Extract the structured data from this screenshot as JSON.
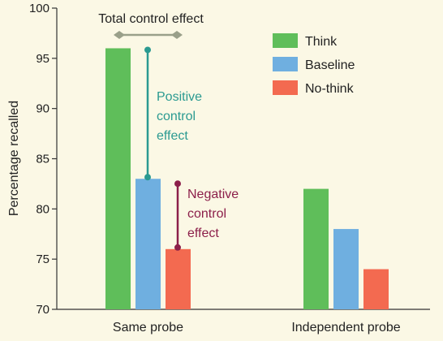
{
  "chart_data": {
    "type": "bar",
    "categories": [
      "Same probe",
      "Independent probe"
    ],
    "series": [
      {
        "name": "Think",
        "color": "#5fbe5a",
        "values": [
          96,
          82
        ]
      },
      {
        "name": "Baseline",
        "color": "#6fafe0",
        "values": [
          83,
          78
        ]
      },
      {
        "name": "No-think",
        "color": "#f36a50",
        "values": [
          76,
          74
        ]
      }
    ],
    "ylabel": "Percentage recalled",
    "xlabel": "",
    "ylim": [
      70,
      100
    ],
    "yticks": [
      70,
      75,
      80,
      85,
      90,
      95,
      100
    ],
    "grid": false,
    "legend_position": "top-right",
    "annotations": {
      "total": {
        "text": "Total control effect",
        "color": "#9aa08a"
      },
      "positive": {
        "lines": [
          "Positive",
          "control",
          "effect"
        ],
        "color": "#2b9a91",
        "from": 96,
        "to": 83
      },
      "negative": {
        "lines": [
          "Negative",
          "control",
          "effect"
        ],
        "color": "#8c1f4a",
        "from": 83,
        "to": 76
      }
    }
  }
}
